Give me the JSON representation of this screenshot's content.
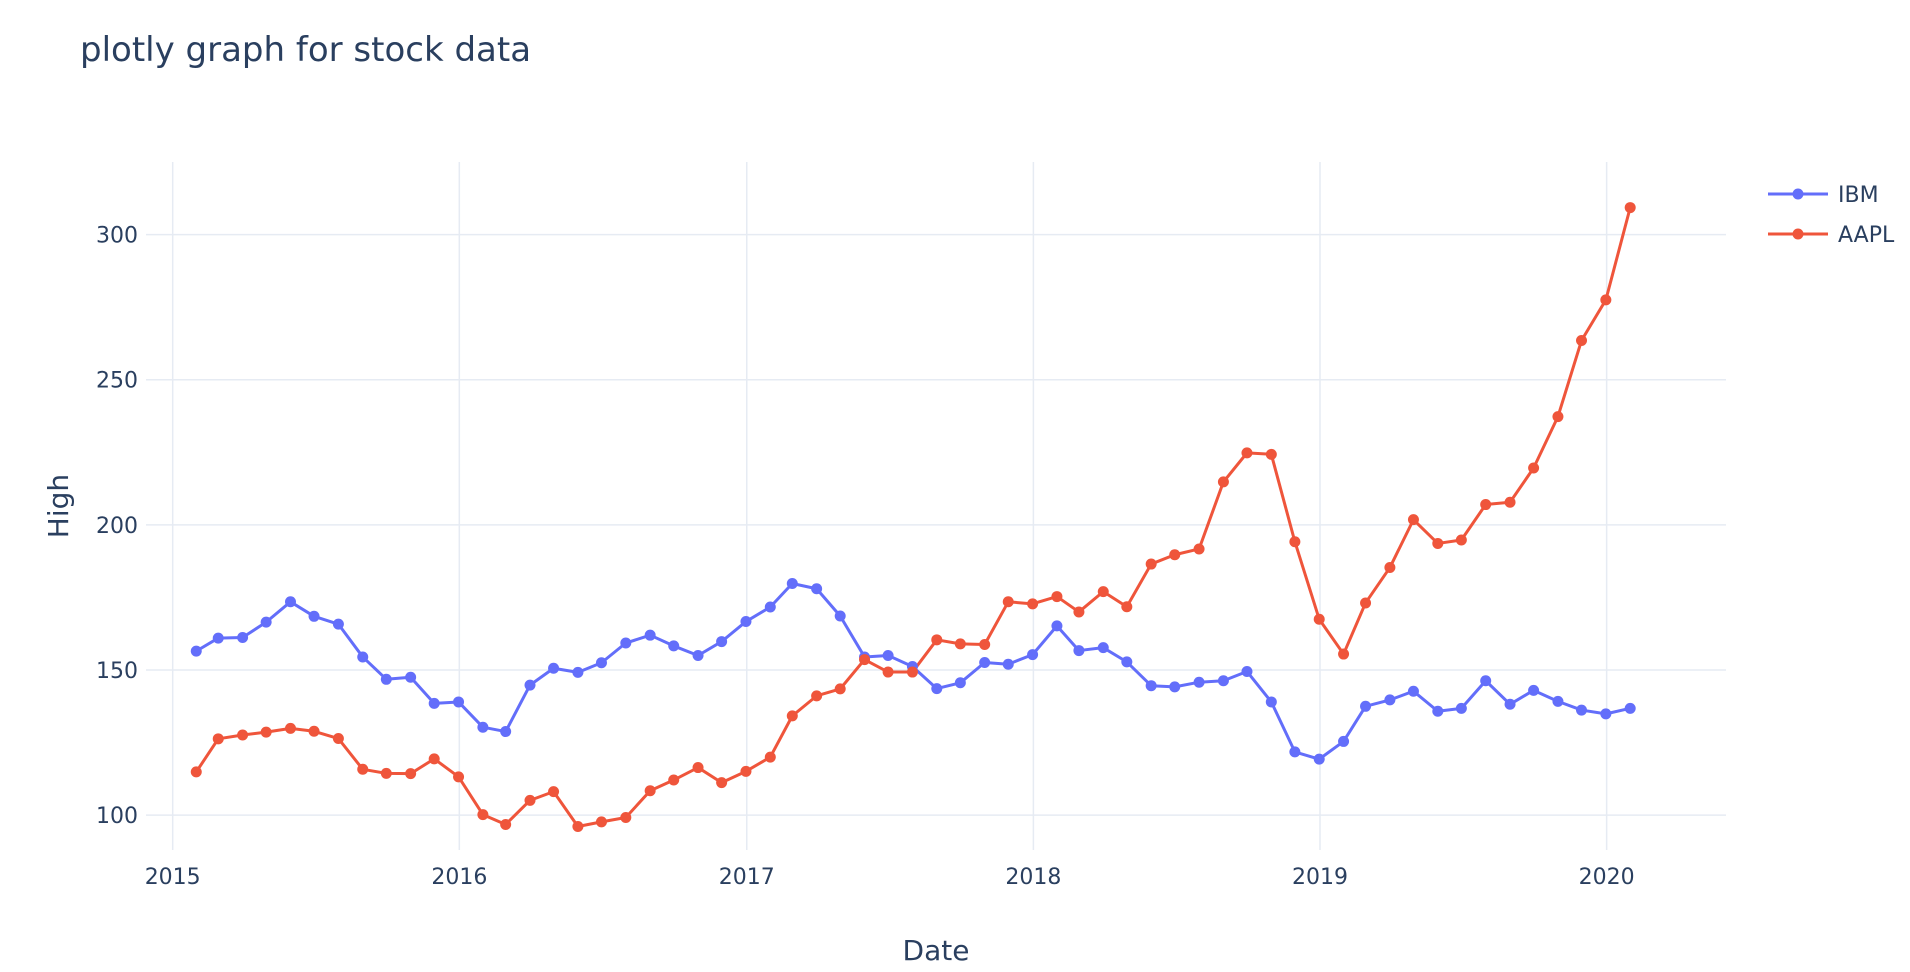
{
  "chart_data": {
    "type": "line",
    "title": "plotly graph for stock data",
    "xlabel": "Date",
    "ylabel": "High",
    "x_axis": {
      "type": "date",
      "range": [
        "2014-11-28",
        "2020-06-01"
      ],
      "ticks": [
        {
          "value": "2015-01-01",
          "label": "2015"
        },
        {
          "value": "2016-01-01",
          "label": "2016"
        },
        {
          "value": "2017-01-01",
          "label": "2017"
        },
        {
          "value": "2018-01-01",
          "label": "2018"
        },
        {
          "value": "2019-01-01",
          "label": "2019"
        },
        {
          "value": "2020-01-01",
          "label": "2020"
        }
      ]
    },
    "y_axis": {
      "range": [
        88,
        325
      ],
      "ticks": [
        100,
        150,
        200,
        250,
        300
      ]
    },
    "x": [
      "2015-01-31",
      "2015-02-28",
      "2015-03-31",
      "2015-04-30",
      "2015-05-31",
      "2015-06-30",
      "2015-07-31",
      "2015-08-31",
      "2015-09-30",
      "2015-10-31",
      "2015-11-30",
      "2015-12-31",
      "2016-01-31",
      "2016-02-29",
      "2016-03-31",
      "2016-04-30",
      "2016-05-31",
      "2016-06-30",
      "2016-07-31",
      "2016-08-31",
      "2016-09-30",
      "2016-10-31",
      "2016-11-30",
      "2016-12-31",
      "2017-01-31",
      "2017-02-28",
      "2017-03-31",
      "2017-04-30",
      "2017-05-31",
      "2017-06-30",
      "2017-07-31",
      "2017-08-31",
      "2017-09-30",
      "2017-10-31",
      "2017-11-30",
      "2017-12-31",
      "2018-01-31",
      "2018-02-28",
      "2018-03-31",
      "2018-04-30",
      "2018-05-31",
      "2018-06-30",
      "2018-07-31",
      "2018-08-31",
      "2018-09-30",
      "2018-10-31",
      "2018-11-30",
      "2018-12-31",
      "2019-01-31",
      "2019-02-28",
      "2019-03-31",
      "2019-04-30",
      "2019-05-31",
      "2019-06-30",
      "2019-07-31",
      "2019-08-31",
      "2019-09-30",
      "2019-10-31",
      "2019-11-30",
      "2019-12-31",
      "2020-01-31"
    ],
    "series": [
      {
        "name": "IBM",
        "color": "#636efa",
        "values": [
          156.5,
          161,
          161.2,
          166.5,
          173.5,
          168.5,
          165.8,
          154.5,
          146.8,
          147.5,
          138.5,
          139,
          130.3,
          128.8,
          144.8,
          150.6,
          149.2,
          152.5,
          159.3,
          162,
          158.3,
          155,
          159.8,
          166.7,
          171.7,
          179.8,
          178,
          168.6,
          154.5,
          155,
          151.2,
          143.6,
          145.6,
          152.6,
          152,
          155.3,
          165.2,
          156.7,
          157.7,
          152.8,
          144.6,
          144.2,
          145.8,
          146.3,
          149.5,
          139,
          121.8,
          119.3,
          125.4,
          137.5,
          139.7,
          142.7,
          135.8,
          136.8,
          146.3,
          138.2,
          143,
          139.2,
          136.2,
          134.9,
          136.8
        ]
      },
      {
        "name": "AAPL",
        "color": "#ef553b",
        "values": [
          114.9,
          126.3,
          127.6,
          128.6,
          129.9,
          128.9,
          126.4,
          115.8,
          114.4,
          114.3,
          119.4,
          113.2,
          100.2,
          96.8,
          105.1,
          108.1,
          96.1,
          97.7,
          99.2,
          108.4,
          112.1,
          116.4,
          111.2,
          115.1,
          120,
          134.2,
          141.1,
          143.5,
          153.6,
          149.3,
          149.3,
          160.4,
          159,
          158.8,
          173.5,
          172.8,
          175.3,
          170,
          177,
          171.8,
          186.5,
          189.7,
          191.7,
          214.8,
          224.8,
          224.3,
          194.2,
          167.5,
          155.5,
          173.1,
          185.3,
          201.8,
          193.6,
          194.8,
          207,
          207.8,
          219.6,
          237.3,
          263.5,
          277.5,
          309.3
        ]
      }
    ],
    "legend": {
      "placement": "top-right"
    },
    "grid": true
  }
}
